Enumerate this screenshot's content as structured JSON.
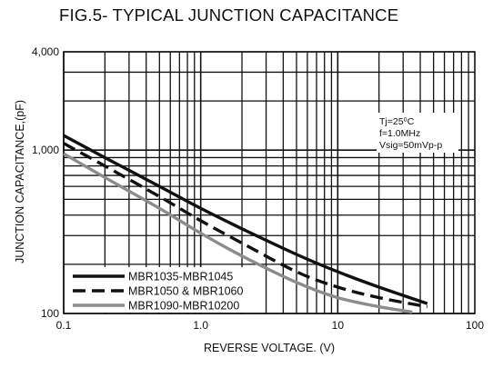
{
  "chart_data": {
    "type": "line",
    "title": "FIG.5- TYPICAL JUNCTION CAPACITANCE",
    "xlabel": "REVERSE VOLTAGE. (V)",
    "ylabel": "JUNCTION CAPACITANCE,(pF)",
    "xscale": "log",
    "yscale": "log",
    "xlim": [
      0.1,
      100
    ],
    "ylim": [
      100,
      4000
    ],
    "grid": true,
    "x_ticks": [
      {
        "value": 0.1,
        "label": "0.1"
      },
      {
        "value": 1,
        "label": "1.0"
      },
      {
        "value": 10,
        "label": "10"
      },
      {
        "value": 100,
        "label": "100"
      }
    ],
    "y_ticks": [
      {
        "value": 100,
        "label": "100"
      },
      {
        "value": 1000,
        "label": "1,000"
      },
      {
        "value": 4000,
        "label": "4,000"
      }
    ],
    "annotation": [
      "Tj=25⁰C",
      "f=1.0MHz",
      "Vsig=50mVp-p"
    ],
    "legend_position": "bottom-left",
    "series": [
      {
        "name": "MBR1035-MBR1045",
        "color": "#111111",
        "style": "solid",
        "x": [
          0.1,
          0.2,
          0.5,
          1,
          2,
          5,
          10,
          20,
          45
        ],
        "y": [
          1230,
          900,
          600,
          440,
          330,
          230,
          180,
          145,
          115
        ]
      },
      {
        "name": "MBR1050 & MBR1060",
        "color": "#111111",
        "style": "dashed",
        "x": [
          0.1,
          0.2,
          0.5,
          1,
          2,
          5,
          10,
          20,
          45
        ],
        "y": [
          1100,
          800,
          520,
          370,
          270,
          180,
          145,
          125,
          110
        ]
      },
      {
        "name": "MBR1090-MBR10200",
        "color": "#8c8c8c",
        "style": "solid",
        "x": [
          0.1,
          0.2,
          0.5,
          1,
          2,
          5,
          10,
          20,
          35
        ],
        "y": [
          950,
          680,
          440,
          310,
          225,
          155,
          125,
          110,
          102
        ]
      }
    ]
  }
}
